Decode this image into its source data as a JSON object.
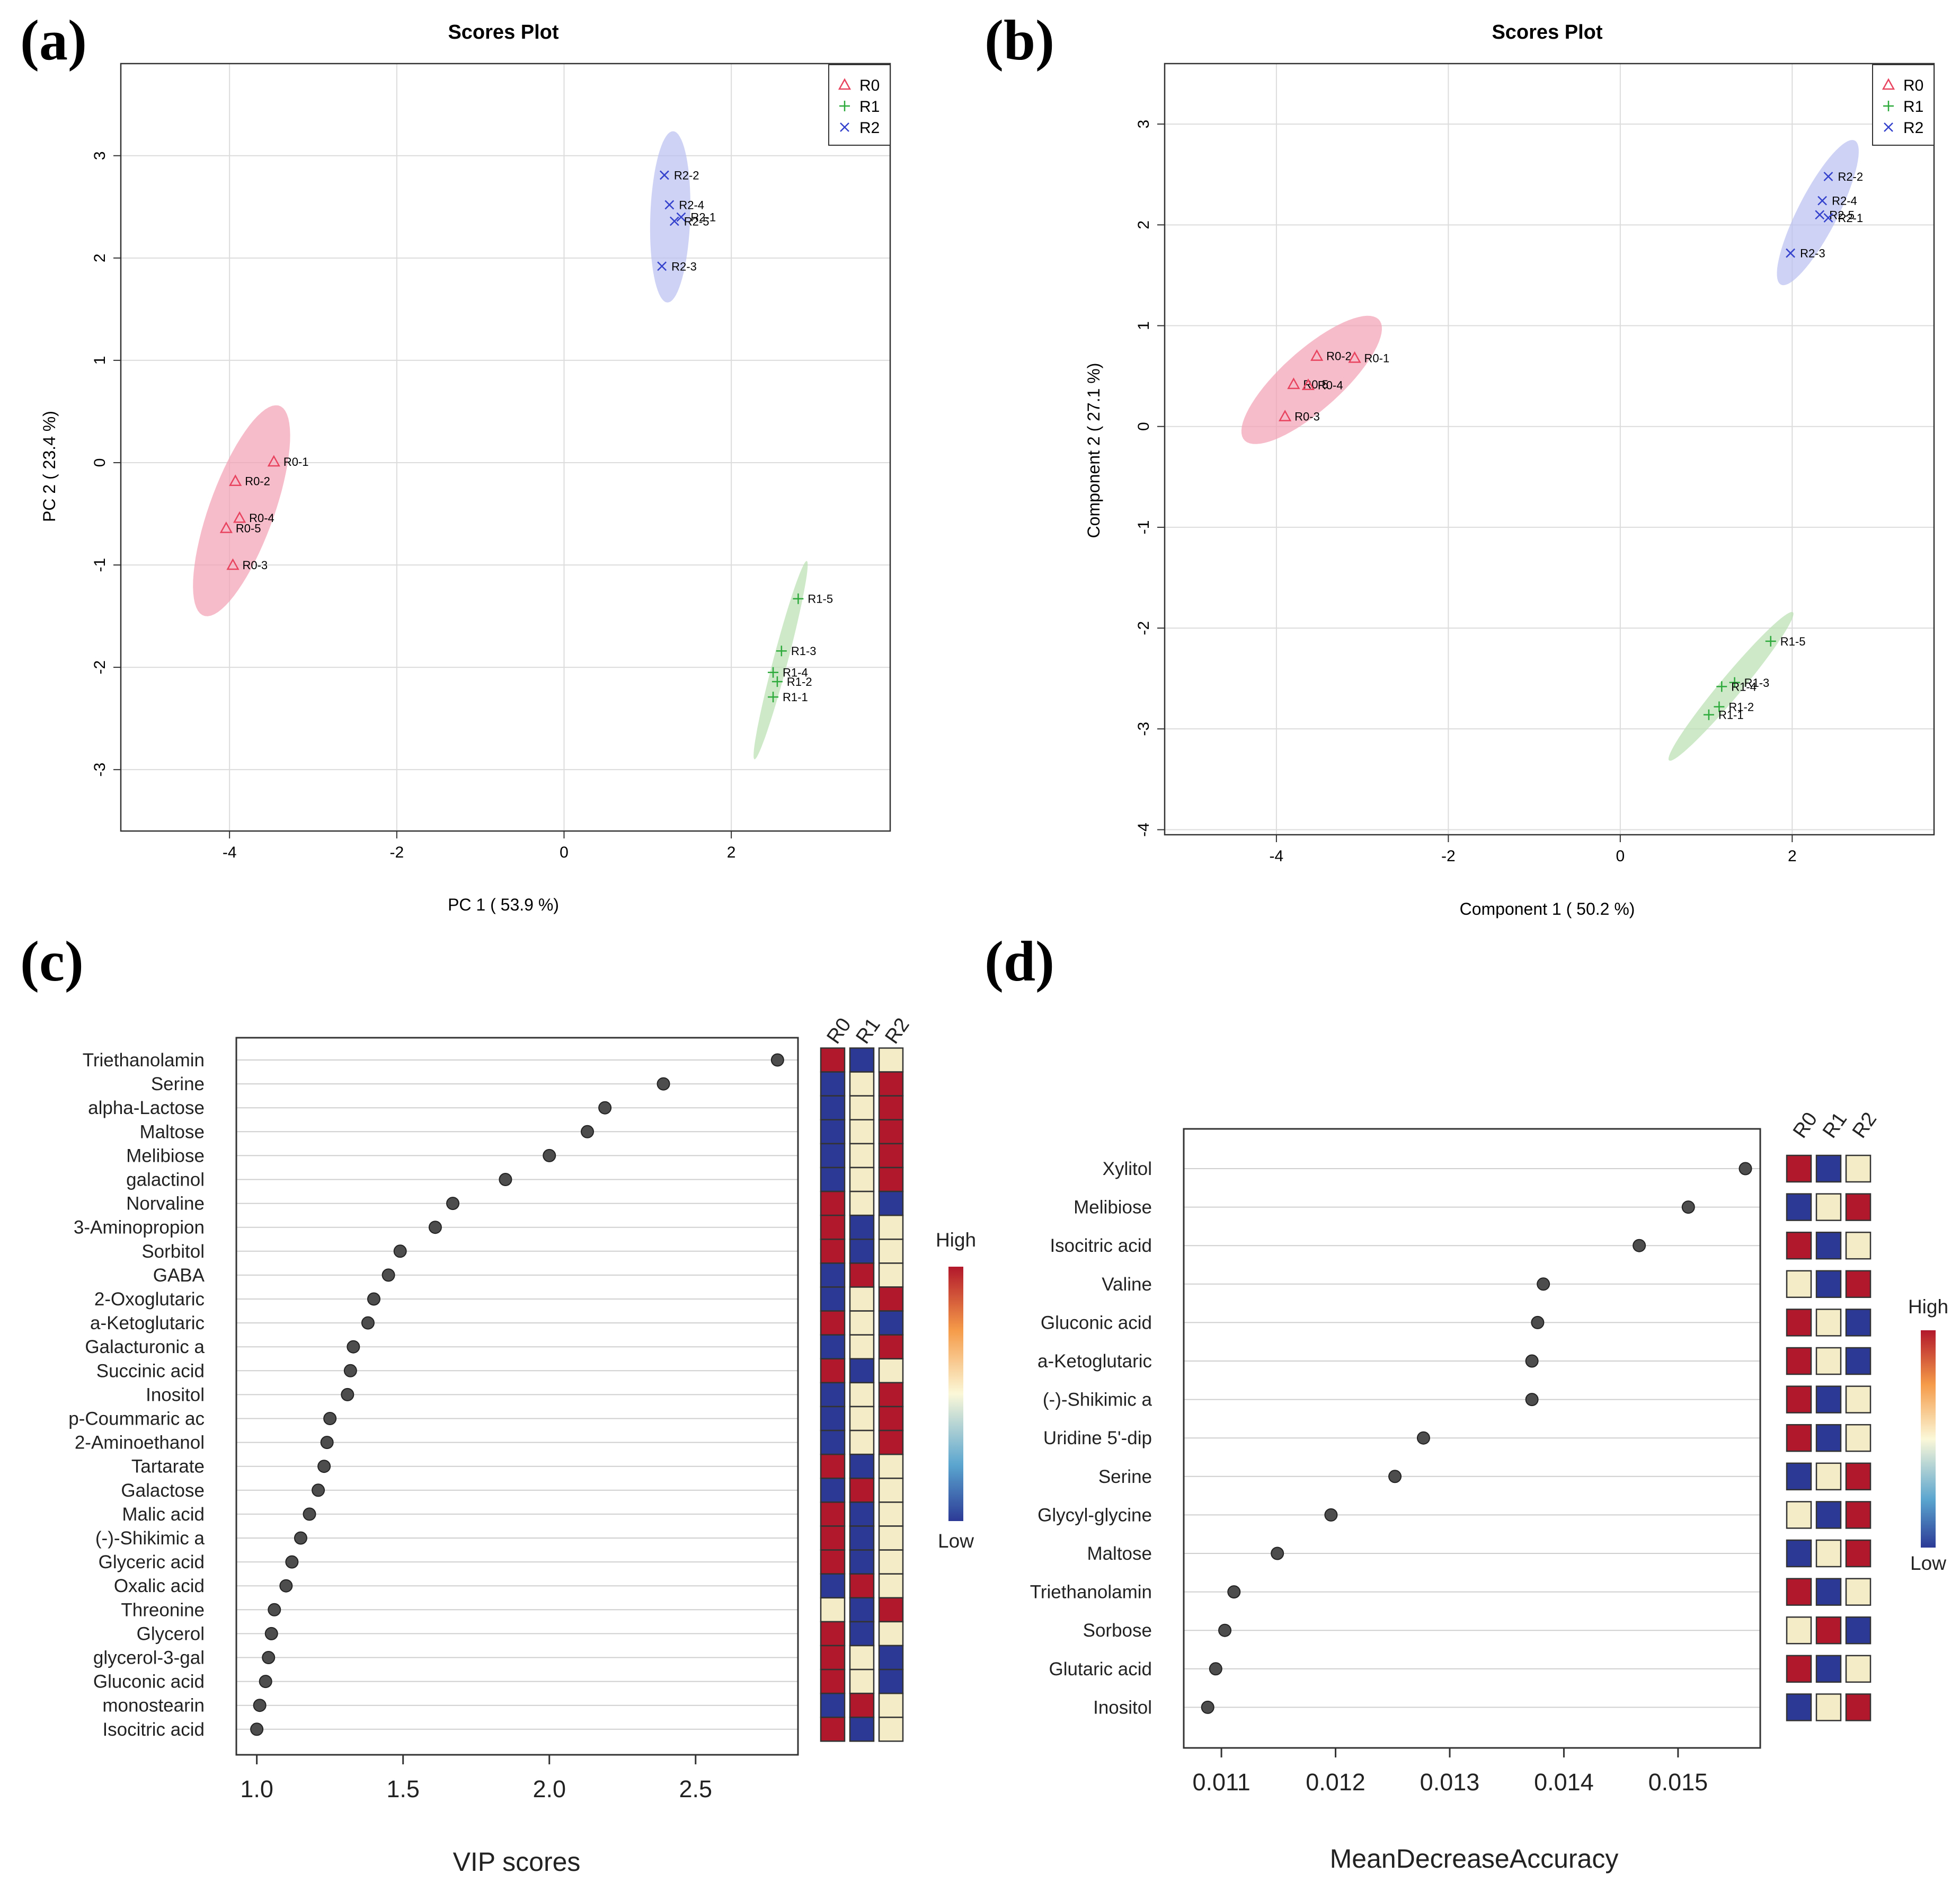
{
  "panel_labels": [
    "(a)",
    "(b)",
    "(c)",
    "(d)"
  ],
  "colors": {
    "R0": "#e8435f",
    "R1": "#2eaa3c",
    "R2": "#3341cc",
    "high": "#b2182b",
    "low": "#2c3a96",
    "mid": "#f3ecc6"
  },
  "chart_data": [
    {
      "panel": "(a)",
      "type": "scatter",
      "title": "Scores Plot",
      "xlabel": "PC 1 ( 53.9 %)",
      "ylabel": "PC 2 ( 23.4 %)",
      "xlim": [
        -5.3,
        3.9
      ],
      "ylim": [
        -3.6,
        3.9
      ],
      "xticks": [
        "-4",
        "-2",
        "0",
        "2"
      ],
      "yticks": [
        "-3",
        "-2",
        "-1",
        "0",
        "1",
        "2",
        "3"
      ],
      "grid": true,
      "legend": "top-right",
      "series": [
        {
          "name": "R0",
          "marker": "triangle",
          "points": [
            {
              "label": "R0-1",
              "x": -3.47,
              "y": 0.01
            },
            {
              "label": "R0-2",
              "x": -3.93,
              "y": -0.18
            },
            {
              "label": "R0-4",
              "x": -3.88,
              "y": -0.54
            },
            {
              "label": "R0-5",
              "x": -4.04,
              "y": -0.64
            },
            {
              "label": "R0-3",
              "x": -3.96,
              "y": -1.0
            }
          ]
        },
        {
          "name": "R1",
          "marker": "plus",
          "points": [
            {
              "label": "R1-5",
              "x": 2.8,
              "y": -1.33
            },
            {
              "label": "R1-3",
              "x": 2.6,
              "y": -1.84
            },
            {
              "label": "R1-4",
              "x": 2.5,
              "y": -2.05
            },
            {
              "label": "R1-2",
              "x": 2.55,
              "y": -2.14
            },
            {
              "label": "R1-1",
              "x": 2.5,
              "y": -2.29
            }
          ]
        },
        {
          "name": "R2",
          "marker": "cross",
          "points": [
            {
              "label": "R2-2",
              "x": 1.2,
              "y": 2.81
            },
            {
              "label": "R2-4",
              "x": 1.26,
              "y": 2.52
            },
            {
              "label": "R2-1",
              "x": 1.4,
              "y": 2.4
            },
            {
              "label": "R2-5",
              "x": 1.32,
              "y": 2.36
            },
            {
              "label": "R2-3",
              "x": 1.17,
              "y": 1.92
            }
          ]
        }
      ]
    },
    {
      "panel": "(b)",
      "type": "scatter",
      "title": "Scores Plot",
      "xlabel": "Component 1 ( 50.2 %)",
      "ylabel": "Component 2 ( 27.1 %)",
      "xlim": [
        -5.3,
        3.65
      ],
      "ylim": [
        -4.05,
        3.6
      ],
      "xticks": [
        "-4",
        "-2",
        "0",
        "2"
      ],
      "yticks": [
        "-4",
        "-3",
        "-2",
        "-1",
        "0",
        "1",
        "2",
        "3"
      ],
      "grid": true,
      "legend": "top-right",
      "series": [
        {
          "name": "R0",
          "marker": "triangle",
          "points": [
            {
              "label": "R0-2",
              "x": -3.53,
              "y": 0.7
            },
            {
              "label": "R0-1",
              "x": -3.09,
              "y": 0.68
            },
            {
              "label": "R0-5",
              "x": -3.8,
              "y": 0.42
            },
            {
              "label": "R0-4",
              "x": -3.63,
              "y": 0.41
            },
            {
              "label": "R0-3",
              "x": -3.9,
              "y": 0.1
            }
          ]
        },
        {
          "name": "R1",
          "marker": "plus",
          "points": [
            {
              "label": "R1-5",
              "x": 1.75,
              "y": -2.13
            },
            {
              "label": "R1-3",
              "x": 1.33,
              "y": -2.54
            },
            {
              "label": "R1-4",
              "x": 1.18,
              "y": -2.58
            },
            {
              "label": "R1-2",
              "x": 1.15,
              "y": -2.78
            },
            {
              "label": "R1-1",
              "x": 1.03,
              "y": -2.86
            }
          ]
        },
        {
          "name": "R2",
          "marker": "cross",
          "points": [
            {
              "label": "R2-2",
              "x": 2.42,
              "y": 2.48
            },
            {
              "label": "R2-4",
              "x": 2.35,
              "y": 2.24
            },
            {
              "label": "R2-5",
              "x": 2.32,
              "y": 2.1
            },
            {
              "label": "R2-1",
              "x": 2.42,
              "y": 2.07
            },
            {
              "label": "R2-3",
              "x": 1.98,
              "y": 1.72
            }
          ]
        }
      ]
    },
    {
      "panel": "(c)",
      "type": "dot",
      "xlabel": "VIP scores",
      "xlim": [
        0.93,
        2.85
      ],
      "xticks": [
        1.0,
        1.5,
        2.0,
        2.5
      ],
      "xtick_labels": [
        "1.0",
        "1.5",
        "2.0",
        "2.5"
      ],
      "heatmap_columns": [
        "R0",
        "R1",
        "R2"
      ],
      "colorbar": {
        "high": "High",
        "low": "Low"
      },
      "items": [
        {
          "name": "Triethanolamin",
          "value": 2.78,
          "levels": [
            "H",
            "L",
            "M"
          ]
        },
        {
          "name": "Serine",
          "value": 2.39,
          "levels": [
            "L",
            "M",
            "H"
          ]
        },
        {
          "name": "alpha-Lactose",
          "value": 2.19,
          "levels": [
            "L",
            "M",
            "H"
          ]
        },
        {
          "name": "Maltose",
          "value": 2.13,
          "levels": [
            "L",
            "M",
            "H"
          ]
        },
        {
          "name": "Melibiose",
          "value": 2.0,
          "levels": [
            "L",
            "M",
            "H"
          ]
        },
        {
          "name": "galactinol",
          "value": 1.85,
          "levels": [
            "L",
            "M",
            "H"
          ]
        },
        {
          "name": "Norvaline",
          "value": 1.67,
          "levels": [
            "H",
            "M",
            "L"
          ]
        },
        {
          "name": "3-Aminopropion",
          "value": 1.61,
          "levels": [
            "H",
            "L",
            "M"
          ]
        },
        {
          "name": "Sorbitol",
          "value": 1.49,
          "levels": [
            "H",
            "L",
            "M"
          ]
        },
        {
          "name": "GABA",
          "value": 1.45,
          "levels": [
            "L",
            "H",
            "M"
          ]
        },
        {
          "name": "2-Oxoglutaric ",
          "value": 1.4,
          "levels": [
            "L",
            "M",
            "H"
          ]
        },
        {
          "name": "a-Ketoglutaric",
          "value": 1.38,
          "levels": [
            "H",
            "M",
            "L"
          ]
        },
        {
          "name": "Galacturonic a",
          "value": 1.33,
          "levels": [
            "L",
            "M",
            "H"
          ]
        },
        {
          "name": "Succinic acid",
          "value": 1.32,
          "levels": [
            "H",
            "L",
            "M"
          ]
        },
        {
          "name": "Inositol",
          "value": 1.31,
          "levels": [
            "L",
            "M",
            "H"
          ]
        },
        {
          "name": "p-Coummaric ac",
          "value": 1.25,
          "levels": [
            "L",
            "M",
            "H"
          ]
        },
        {
          "name": "2-Aminoethanol",
          "value": 1.24,
          "levels": [
            "L",
            "M",
            "H"
          ]
        },
        {
          "name": "Tartarate",
          "value": 1.23,
          "levels": [
            "H",
            "L",
            "M"
          ]
        },
        {
          "name": "Galactose",
          "value": 1.21,
          "levels": [
            "L",
            "H",
            "M"
          ]
        },
        {
          "name": "Malic acid",
          "value": 1.18,
          "levels": [
            "H",
            "L",
            "M"
          ]
        },
        {
          "name": "(-)-Shikimic a",
          "value": 1.15,
          "levels": [
            "H",
            "L",
            "M"
          ]
        },
        {
          "name": "Glyceric acid",
          "value": 1.12,
          "levels": [
            "H",
            "L",
            "M"
          ]
        },
        {
          "name": "Oxalic acid",
          "value": 1.1,
          "levels": [
            "L",
            "H",
            "M"
          ]
        },
        {
          "name": "Threonine",
          "value": 1.06,
          "levels": [
            "M",
            "L",
            "H"
          ]
        },
        {
          "name": "Glycerol",
          "value": 1.05,
          "levels": [
            "H",
            "L",
            "M"
          ]
        },
        {
          "name": "glycerol-3-gal",
          "value": 1.04,
          "levels": [
            "H",
            "M",
            "L"
          ]
        },
        {
          "name": "Gluconic acid",
          "value": 1.03,
          "levels": [
            "H",
            "M",
            "L"
          ]
        },
        {
          "name": "monostearin",
          "value": 1.01,
          "levels": [
            "L",
            "H",
            "M"
          ]
        },
        {
          "name": "Isocitric acid",
          "value": 1.0,
          "levels": [
            "H",
            "L",
            "M"
          ]
        }
      ]
    },
    {
      "panel": "(d)",
      "type": "dot",
      "xlabel": "MeanDecreaseAccuracy",
      "xlim": [
        0.01067,
        0.01572
      ],
      "xticks": [
        0.011,
        0.012,
        0.013,
        0.014,
        0.015
      ],
      "xtick_labels": [
        "0.011",
        "0.012",
        "0.013",
        "0.014",
        "0.015"
      ],
      "heatmap_columns": [
        "R0",
        "R1",
        "R2"
      ],
      "colorbar": {
        "high": "High",
        "low": "Low"
      },
      "items": [
        {
          "name": "Xylitol",
          "value": 0.01559,
          "levels": [
            "H",
            "L",
            "M"
          ]
        },
        {
          "name": "Melibiose",
          "value": 0.01509,
          "levels": [
            "L",
            "M",
            "H"
          ]
        },
        {
          "name": "Isocitric acid",
          "value": 0.01466,
          "levels": [
            "H",
            "L",
            "M"
          ]
        },
        {
          "name": "Valine",
          "value": 0.01382,
          "levels": [
            "M",
            "L",
            "H"
          ]
        },
        {
          "name": "Gluconic acid",
          "value": 0.01377,
          "levels": [
            "H",
            "M",
            "L"
          ]
        },
        {
          "name": "a-Ketoglutaric",
          "value": 0.01372,
          "levels": [
            "H",
            "M",
            "L"
          ]
        },
        {
          "name": "(-)-Shikimic a",
          "value": 0.01372,
          "levels": [
            "H",
            "L",
            "M"
          ]
        },
        {
          "name": "Uridine 5'-dip",
          "value": 0.01277,
          "levels": [
            "H",
            "L",
            "M"
          ]
        },
        {
          "name": "Serine",
          "value": 0.01252,
          "levels": [
            "L",
            "M",
            "H"
          ]
        },
        {
          "name": "Glycyl-glycine",
          "value": 0.01196,
          "levels": [
            "M",
            "L",
            "H"
          ]
        },
        {
          "name": "Maltose",
          "value": 0.01149,
          "levels": [
            "L",
            "M",
            "H"
          ]
        },
        {
          "name": "Triethanolamin",
          "value": 0.01111,
          "levels": [
            "H",
            "L",
            "M"
          ]
        },
        {
          "name": "Sorbose",
          "value": 0.01103,
          "levels": [
            "M",
            "H",
            "L"
          ]
        },
        {
          "name": "Glutaric acid",
          "value": 0.01095,
          "levels": [
            "H",
            "L",
            "M"
          ]
        },
        {
          "name": "Inositol",
          "value": 0.01088,
          "levels": [
            "L",
            "M",
            "H"
          ]
        }
      ]
    }
  ]
}
